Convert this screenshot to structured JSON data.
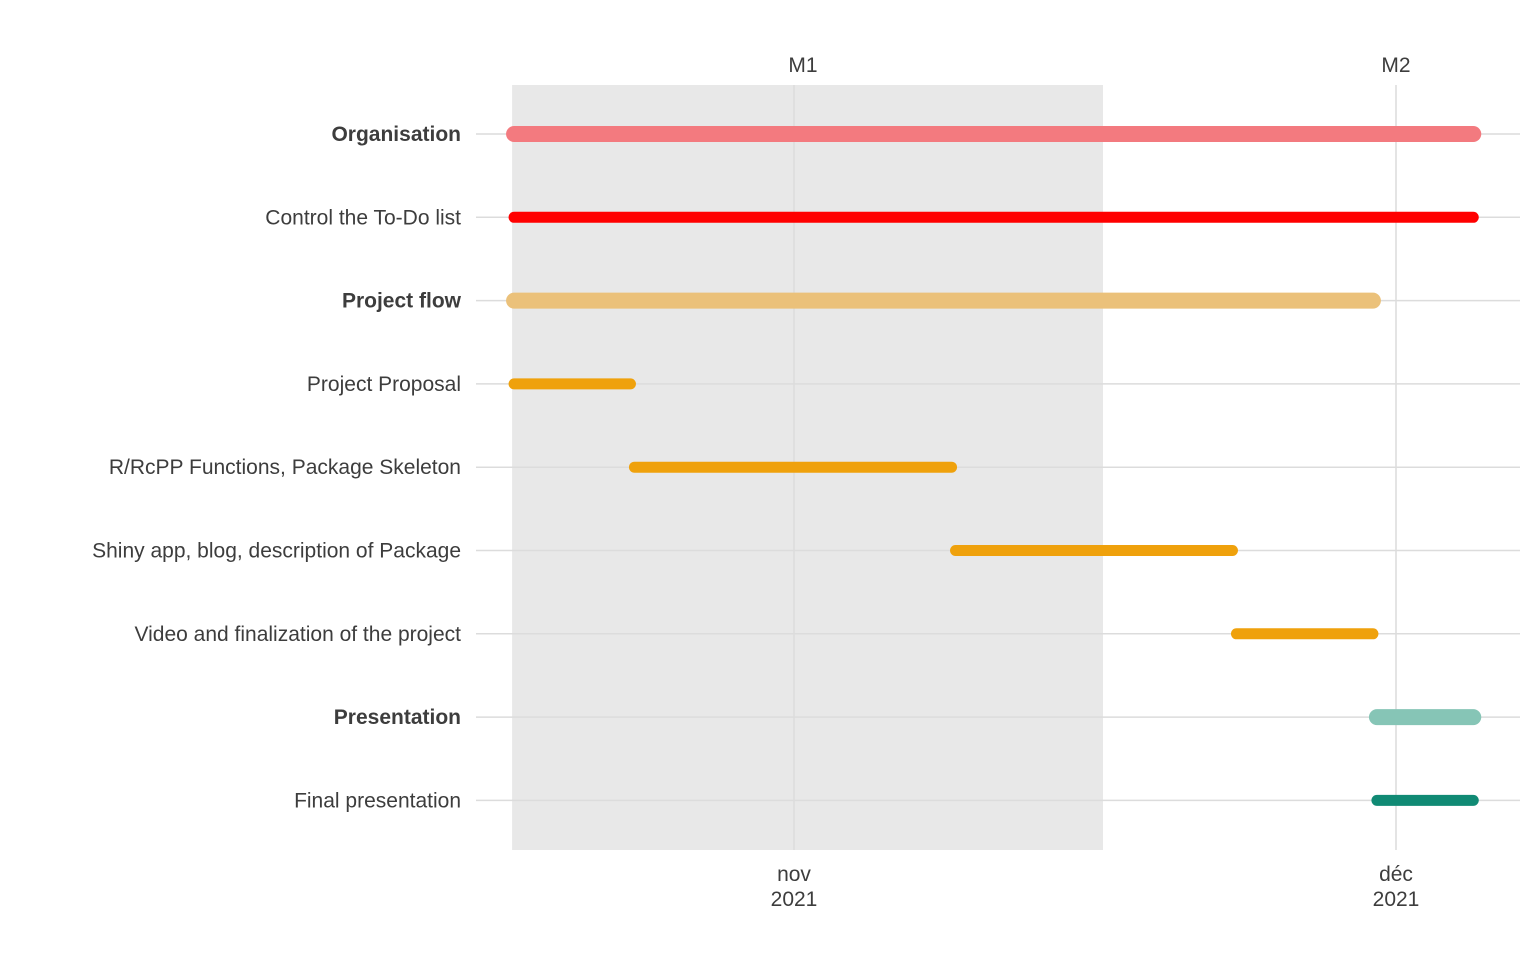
{
  "chart_data": {
    "type": "gantt",
    "x_axis": {
      "range": [
        "2021-10-18",
        "2021-12-05"
      ],
      "ticks": [
        {
          "date": "2021-11-01",
          "label_line1": "nov",
          "label_line2": "2021"
        },
        {
          "date": "2021-12-01",
          "label_line1": "déc",
          "label_line2": "2021"
        }
      ]
    },
    "milestones": [
      {
        "label": "M1",
        "date": "2021-11-01"
      },
      {
        "label": "M2",
        "date": "2021-12-01"
      }
    ],
    "shaded_period": {
      "start": "2021-10-18",
      "end": "2021-11-16",
      "color": "#e8e8e8"
    },
    "grid": true,
    "rows": [
      {
        "label": "Organisation",
        "group": true,
        "start": "2021-10-18",
        "end": "2021-12-05",
        "color": "#f37a7f"
      },
      {
        "label": "Control the To-Do list",
        "group": false,
        "start": "2021-10-18",
        "end": "2021-12-05",
        "color": "#ff0000"
      },
      {
        "label": "Project flow",
        "group": true,
        "start": "2021-10-18",
        "end": "2021-11-30",
        "color": "#ebc17a"
      },
      {
        "label": "Project Proposal",
        "group": false,
        "start": "2021-10-18",
        "end": "2021-10-24",
        "color": "#efa10c"
      },
      {
        "label": "R/RcPP Functions, Package Skeleton",
        "group": false,
        "start": "2021-10-24",
        "end": "2021-11-09",
        "color": "#efa10c"
      },
      {
        "label": "Shiny app, blog, description of Package",
        "group": false,
        "start": "2021-11-09",
        "end": "2021-11-23",
        "color": "#efa10c"
      },
      {
        "label": "Video and finalization of the project",
        "group": false,
        "start": "2021-11-23",
        "end": "2021-11-30",
        "color": "#efa10c"
      },
      {
        "label": "Presentation",
        "group": true,
        "start": "2021-11-30",
        "end": "2021-12-05",
        "color": "#86c5b6"
      },
      {
        "label": "Final presentation",
        "group": false,
        "start": "2021-11-30",
        "end": "2021-12-05",
        "color": "#108a74"
      }
    ]
  }
}
